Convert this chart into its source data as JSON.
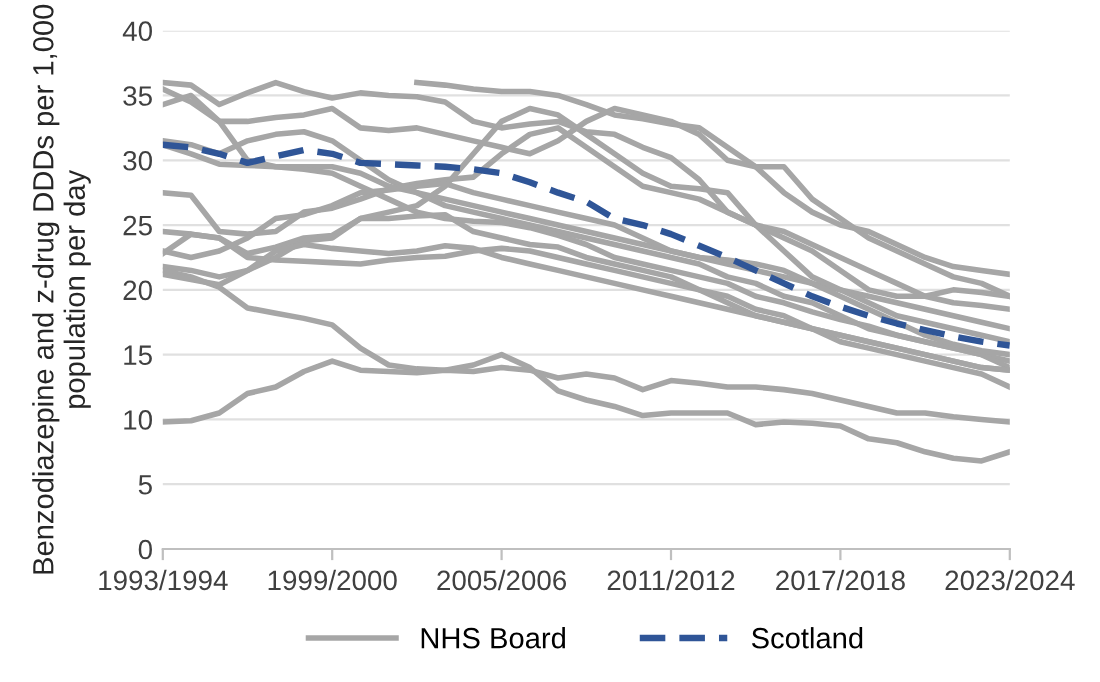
{
  "chart_data": {
    "type": "line",
    "ylabel": "Benzodiazepine and z-drug DDDs per 1,000 population per day",
    "categories": [
      "1993/1994",
      null,
      null,
      null,
      null,
      null,
      "1999/2000",
      null,
      null,
      null,
      null,
      null,
      "2005/2006",
      null,
      null,
      null,
      null,
      null,
      "2011/2012",
      null,
      null,
      null,
      null,
      null,
      "2017/2018",
      null,
      null,
      null,
      null,
      null,
      "2023/2024"
    ],
    "ylim": [
      0,
      40
    ],
    "yticks": [
      0,
      5,
      10,
      15,
      20,
      25,
      30,
      35,
      40
    ],
    "grid": "y",
    "legend": "bottom",
    "marker": "none",
    "series": [
      {
        "name": "NHS Board",
        "color": "#a6a6a6",
        "values": [
          36,
          35.8,
          34.3,
          35.2,
          36,
          35.3,
          34.8,
          35.2,
          35.0,
          34.9,
          34.5,
          33,
          32.5,
          32.8,
          33,
          32.2,
          32,
          31,
          30.2,
          28.5,
          26,
          25,
          24.5,
          23.5,
          22.5,
          21.5,
          20.5,
          19.5,
          19,
          18.8,
          18.5
        ]
      },
      {
        "color": "#a6a6a6",
        "values": [
          35.5,
          34.5,
          33,
          33,
          33.3,
          33.5,
          34,
          32.5,
          32.3,
          32.5,
          32,
          31.5,
          31,
          30.5,
          31.5,
          33,
          34,
          33.5,
          33,
          32,
          30,
          29.5,
          29.5,
          27,
          25.5,
          24,
          23,
          22,
          21,
          20.5,
          19.5
        ]
      },
      {
        "color": "#a6a6a6",
        "values": [
          34.3,
          35,
          33,
          30,
          29.5,
          29.5,
          29.5,
          29,
          28,
          27.5,
          27,
          26.5,
          26,
          25.5,
          25,
          24.5,
          24,
          23.5,
          23,
          22.5,
          22,
          21.5,
          21,
          20.5,
          20,
          19.5,
          19,
          18.5,
          18,
          17.5,
          17
        ]
      },
      {
        "color": "#a6a6a6",
        "values": [
          31.5,
          31.2,
          30.5,
          31.5,
          32,
          32.2,
          31.5,
          30,
          28.5,
          27.5,
          26.5,
          26,
          25.5,
          25,
          24.5,
          24,
          23.5,
          23,
          22.5,
          22,
          21,
          20.5,
          19.5,
          19,
          18,
          17,
          16.5,
          16,
          15.5,
          15,
          14.5
        ]
      },
      {
        "color": "#a6a6a6",
        "values": [
          31.2,
          30.5,
          29.7,
          29.6,
          29.5,
          29.3,
          29,
          28,
          27,
          26,
          25.5,
          25.3,
          25.2,
          24.8,
          24.2,
          23.5,
          22.5,
          22,
          21.5,
          21,
          20.5,
          19.5,
          19,
          18.3,
          17.7,
          17.2,
          16.5,
          16,
          15.5,
          15,
          14
        ]
      },
      {
        "color": "#a6a6a6",
        "values": [
          27.5,
          27.3,
          24.5,
          24.3,
          24.5,
          26,
          26.3,
          27,
          27.8,
          28.2,
          28.5,
          28.7,
          30.5,
          32,
          32.5,
          31,
          29.5,
          28,
          27.5,
          27,
          26,
          25,
          24,
          23,
          21.5,
          20,
          19.5,
          19.5,
          20,
          19.8,
          19.5
        ]
      },
      {
        "color": "#a6a6a6",
        "values": [
          24.5,
          24.3,
          24,
          22.8,
          23.3,
          24,
          24.2,
          25.5,
          26,
          26.5,
          28,
          30.5,
          33,
          34,
          33.5,
          32,
          30.5,
          29,
          28,
          27.8,
          27.5,
          25,
          23,
          21,
          20,
          19,
          18,
          17.5,
          17,
          16.5,
          16
        ]
      },
      {
        "color": "#a6a6a6",
        "values": [
          22.8,
          24.3,
          24,
          22.5,
          22.3,
          22.2,
          22.1,
          22,
          22.3,
          22.5,
          22.6,
          23,
          23.2,
          23,
          22.5,
          22,
          21.5,
          21,
          20.5,
          20,
          19,
          18,
          17.5,
          17,
          16.5,
          16,
          15.5,
          15,
          14.5,
          14,
          13.8
        ]
      },
      {
        "color": "#a6a6a6",
        "values": [
          21.8,
          21.5,
          21,
          21.5,
          22.5,
          23.8,
          24,
          25.5,
          25.5,
          25.7,
          25.8,
          24.5,
          24,
          23.5,
          23.3,
          22.5,
          22,
          21.5,
          21,
          20,
          19.5,
          18.5,
          18,
          17,
          16,
          15.5,
          15,
          14.5,
          14,
          13.5,
          12.5
        ]
      },
      {
        "color": "#a6a6a6",
        "values": [
          21.5,
          21,
          20.2,
          18.6,
          18.2,
          17.8,
          17.3,
          15.5,
          14.2,
          13.9,
          13.8,
          14.2,
          15,
          14,
          12.2,
          11.5,
          11,
          10.3,
          10.5,
          10.5,
          10.5,
          9.6,
          9.8,
          9.7,
          9.5,
          8.5,
          8.2,
          7.5,
          7,
          6.8,
          7.5
        ]
      },
      {
        "color": "#a6a6a6",
        "values": [
          9.8,
          9.9,
          10.5,
          12,
          12.5,
          13.7,
          14.5,
          13.8,
          13.7,
          13.6,
          13.8,
          13.7,
          14,
          13.8,
          13.2,
          13.5,
          13.2,
          12.3,
          13,
          12.8,
          12.5,
          12.5,
          12.3,
          12,
          11.5,
          11,
          10.5,
          10.5,
          10.2,
          10,
          9.8
        ]
      },
      {
        "color": "#a6a6a6",
        "values": [
          null,
          null,
          null,
          null,
          null,
          null,
          null,
          null,
          null,
          36,
          35.8,
          35.5,
          35.3,
          35.3,
          35,
          34.3,
          33.5,
          33.2,
          32.8,
          32.5,
          31,
          29.5,
          27.5,
          26,
          25,
          24.5,
          23.5,
          22.5,
          21.8,
          21.5,
          21.2
        ]
      },
      {
        "color": "#a6a6a6",
        "values": [
          23,
          22.5,
          23,
          24,
          25.5,
          25.8,
          26.5,
          27.5,
          27.7,
          28,
          28.2,
          27.5,
          27,
          26.5,
          26,
          25.5,
          25,
          24,
          23,
          22.5,
          22.3,
          22,
          21.5,
          20.5,
          19.5,
          18.5,
          17.5,
          16.5,
          15.8,
          15.3,
          15
        ]
      },
      {
        "color": "#a6a6a6",
        "values": [
          21.2,
          20.8,
          20.4,
          21.5,
          23,
          23.5,
          23.2,
          23,
          22.8,
          23,
          23.4,
          23.2,
          22.5,
          22,
          21.5,
          21,
          20.5,
          20,
          19.5,
          19,
          18.5,
          18,
          17.5,
          17,
          16.5,
          16,
          15.5,
          15,
          14.5,
          14,
          13.8
        ]
      },
      {
        "name": "Scotland",
        "color": "#2f5597",
        "line_style": "dashed",
        "values": [
          31.2,
          31,
          30.5,
          29.8,
          30.3,
          30.8,
          30.5,
          29.8,
          29.7,
          29.6,
          29.5,
          29.3,
          29,
          28.3,
          27.5,
          26.8,
          25.5,
          25,
          24.3,
          23.4,
          22.5,
          21.5,
          20.5,
          19.5,
          18.7,
          18,
          17.4,
          16.9,
          16.4,
          16,
          15.7
        ]
      }
    ]
  }
}
